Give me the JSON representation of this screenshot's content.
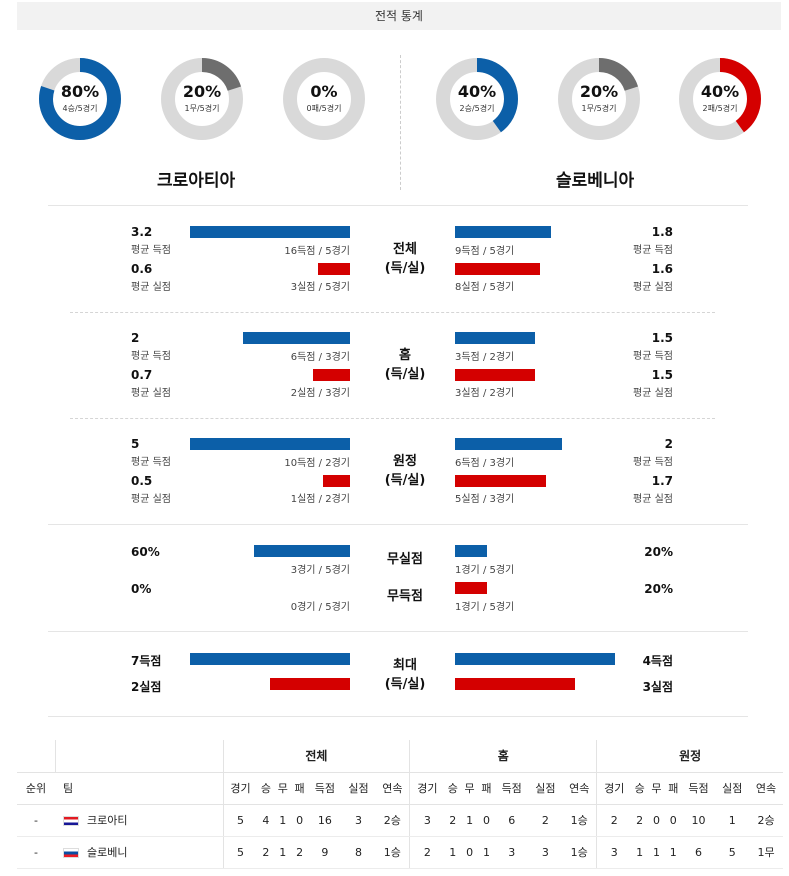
{
  "header": {
    "title": "전적 통계"
  },
  "colors": {
    "blue": "#0c5fa8",
    "red": "#d40000",
    "gray": "#6e6e6e",
    "track": "#d9d9d9"
  },
  "donuts": [
    {
      "pct": "80%",
      "sub": "4승/5경기",
      "fraction": 0.8,
      "color": "blue"
    },
    {
      "pct": "20%",
      "sub": "1무/5경기",
      "fraction": 0.2,
      "color": "gray"
    },
    {
      "pct": "0%",
      "sub": "0패/5경기",
      "fraction": 0.0,
      "color": "red"
    },
    {
      "pct": "40%",
      "sub": "2승/5경기",
      "fraction": 0.4,
      "color": "blue"
    },
    {
      "pct": "20%",
      "sub": "1무/5경기",
      "fraction": 0.2,
      "color": "gray"
    },
    {
      "pct": "40%",
      "sub": "2패/5경기",
      "fraction": 0.4,
      "color": "red"
    }
  ],
  "teams": {
    "home": "크로아티아",
    "away": "슬로베니아"
  },
  "sections": {
    "total": {
      "center": [
        "전체",
        "(득/실)"
      ],
      "home_scored": {
        "value": "3.2",
        "label": "평균 득점",
        "caption": "16득점 / 5경기",
        "fraction": 1.0
      },
      "home_conceded": {
        "value": "0.6",
        "label": "평균 실점",
        "caption": "3실점 / 5경기",
        "fraction": 0.2
      },
      "away_scored": {
        "value": "1.8",
        "label": "평균 득점",
        "caption": "9득점 / 5경기",
        "fraction": 0.6
      },
      "away_conceded": {
        "value": "1.6",
        "label": "평균 실점",
        "caption": "8실점 / 5경기",
        "fraction": 0.53
      }
    },
    "home": {
      "center": [
        "홈",
        "(득/실)"
      ],
      "home_scored": {
        "value": "2",
        "label": "평균 득점",
        "caption": "6득점 / 3경기",
        "fraction": 0.67
      },
      "home_conceded": {
        "value": "0.7",
        "label": "평균 실점",
        "caption": "2실점 / 3경기",
        "fraction": 0.23
      },
      "away_scored": {
        "value": "1.5",
        "label": "평균 득점",
        "caption": "3득점 / 2경기",
        "fraction": 0.5
      },
      "away_conceded": {
        "value": "1.5",
        "label": "평균 실점",
        "caption": "3실점 / 2경기",
        "fraction": 0.5
      }
    },
    "away": {
      "center": [
        "원정",
        "(득/실)"
      ],
      "home_scored": {
        "value": "5",
        "label": "평균 득점",
        "caption": "10득점 / 2경기",
        "fraction": 1.0
      },
      "home_conceded": {
        "value": "0.5",
        "label": "평균 실점",
        "caption": "1실점 / 2경기",
        "fraction": 0.17
      },
      "away_scored": {
        "value": "2",
        "label": "평균 득점",
        "caption": "6득점 / 3경기",
        "fraction": 0.67
      },
      "away_conceded": {
        "value": "1.7",
        "label": "평균 실점",
        "caption": "5실점 / 3경기",
        "fraction": 0.57
      }
    },
    "clean": {
      "clean_sheet": {
        "label": "무실점",
        "home_value": "60%",
        "home_caption": "3경기 / 5경기",
        "home_fraction": 0.6,
        "away_value": "20%",
        "away_caption": "1경기 / 5경기",
        "away_fraction": 0.2
      },
      "no_score": {
        "label": "무득점",
        "home_value": "0%",
        "home_caption": "0경기 / 5경기",
        "home_fraction": 0.0,
        "away_value": "20%",
        "away_caption": "1경기 / 5경기",
        "away_fraction": 0.2
      }
    },
    "max": {
      "center": [
        "최대",
        "(득/실)"
      ],
      "home_scored": {
        "value": "7득점",
        "fraction": 1.0
      },
      "home_conceded": {
        "value": "2실점",
        "fraction": 0.5
      },
      "away_scored": {
        "value": "4득점",
        "fraction": 1.0
      },
      "away_conceded": {
        "value": "3실점",
        "fraction": 0.75
      }
    }
  },
  "standings": {
    "groups": [
      "전체",
      "홈",
      "원정"
    ],
    "rank_header": "순위",
    "team_header": "팀",
    "columns": [
      "경기",
      "승",
      "무",
      "패",
      "득점",
      "실점",
      "연속"
    ],
    "rows": [
      {
        "rank": "-",
        "team": "크로아티",
        "flag": "hr",
        "cells": [
          "5",
          "4",
          "1",
          "0",
          "16",
          "3",
          "2승",
          "3",
          "2",
          "1",
          "0",
          "6",
          "2",
          "1승",
          "2",
          "2",
          "0",
          "0",
          "10",
          "1",
          "2승"
        ]
      },
      {
        "rank": "-",
        "team": "슬로베니",
        "flag": "si",
        "cells": [
          "5",
          "2",
          "1",
          "2",
          "9",
          "8",
          "1승",
          "2",
          "1",
          "0",
          "1",
          "3",
          "3",
          "1승",
          "3",
          "1",
          "1",
          "1",
          "6",
          "5",
          "1무"
        ]
      }
    ]
  }
}
